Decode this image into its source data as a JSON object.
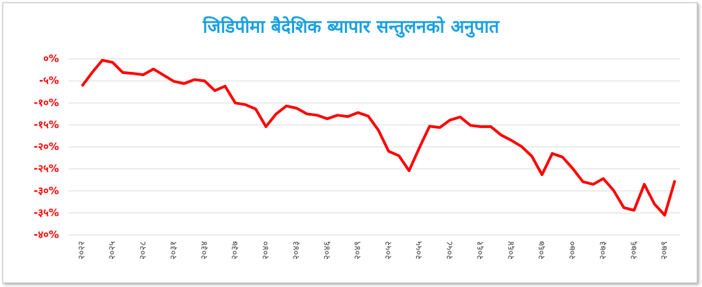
{
  "chart_data": {
    "type": "line",
    "title": "जिडिपीमा बैदेशिक ब्यापार सन्तुलनको अनुपात",
    "categories": [
      "२०२२",
      null,
      null,
      "२०२५",
      null,
      null,
      "२०२८",
      null,
      null,
      "२०३१",
      null,
      null,
      "२०३४",
      null,
      null,
      "२०३७",
      null,
      null,
      "२०४०",
      null,
      null,
      "२०४३",
      null,
      null,
      "२०४६",
      null,
      null,
      "२०४९",
      null,
      null,
      "२०५२",
      null,
      null,
      "२०५५",
      null,
      null,
      "२०५८",
      null,
      null,
      "२०६१",
      null,
      null,
      "२०६४",
      null,
      null,
      "२०६७",
      null,
      null,
      "२०७०",
      null,
      null,
      "२०७३",
      null,
      null,
      "२०७६",
      null,
      null,
      "२०७९",
      null
    ],
    "values": [
      -6.2,
      -3.1,
      -0.3,
      -0.8,
      -3.1,
      -3.3,
      -3.6,
      -2.3,
      -3.7,
      -5.1,
      -5.6,
      -4.7,
      -5.0,
      -7.2,
      -6.2,
      -10.0,
      -10.4,
      -11.4,
      -15.4,
      -12.5,
      -10.7,
      -11.2,
      -12.5,
      -12.8,
      -13.6,
      -12.8,
      -13.1,
      -12.2,
      -13.0,
      -16.2,
      -21.0,
      -22.0,
      -25.4,
      -20.2,
      -15.3,
      -15.6,
      -13.9,
      -13.2,
      -15.1,
      -15.4,
      -15.4,
      -17.3,
      -18.5,
      -19.9,
      -22.1,
      -26.3,
      -21.5,
      -22.3,
      -24.9,
      -27.9,
      -28.5,
      -27.2,
      -29.9,
      -33.8,
      -34.4,
      -28.5,
      -33.0,
      -35.5,
      -27.6
    ],
    "color": "#ff0000",
    "ylim": [
      -40,
      0
    ],
    "yticks": [
      {
        "value": 0,
        "label": "०%"
      },
      {
        "value": -5,
        "label": "-५%"
      },
      {
        "value": -10,
        "label": "-१०%"
      },
      {
        "value": -15,
        "label": "-१५%"
      },
      {
        "value": -20,
        "label": "-२०%"
      },
      {
        "value": -25,
        "label": "-२५%"
      },
      {
        "value": -30,
        "label": "-३०%"
      },
      {
        "value": -35,
        "label": "-३५%"
      },
      {
        "value": -40,
        "label": "-४०%"
      }
    ],
    "grid": true
  }
}
